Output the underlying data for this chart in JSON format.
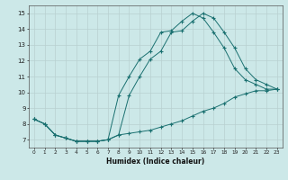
{
  "xlabel": "Humidex (Indice chaleur)",
  "background_color": "#cce8e8",
  "grid_color": "#b8d0d0",
  "line_color": "#1a7070",
  "xlim": [
    -0.5,
    23.5
  ],
  "ylim": [
    6.5,
    15.5
  ],
  "xticks": [
    0,
    1,
    2,
    3,
    4,
    5,
    6,
    7,
    8,
    9,
    10,
    11,
    12,
    13,
    14,
    15,
    16,
    17,
    18,
    19,
    20,
    21,
    22,
    23
  ],
  "yticks": [
    7,
    8,
    9,
    10,
    11,
    12,
    13,
    14,
    15
  ],
  "line1_x": [
    0,
    1,
    2,
    3,
    4,
    5,
    6,
    7,
    8,
    9,
    10,
    11,
    12,
    13,
    14,
    15,
    16,
    17,
    18,
    19,
    20,
    21,
    22,
    23
  ],
  "line1_y": [
    8.3,
    8.0,
    7.3,
    7.1,
    6.9,
    6.9,
    6.9,
    7.0,
    7.3,
    9.8,
    11.0,
    12.1,
    12.6,
    13.8,
    13.9,
    14.5,
    15.0,
    14.7,
    13.8,
    12.8,
    11.5,
    10.8,
    10.5,
    10.2
  ],
  "line2_x": [
    0,
    1,
    2,
    3,
    4,
    5,
    6,
    7,
    8,
    9,
    10,
    11,
    12,
    13,
    14,
    15,
    16,
    17,
    18,
    19,
    20,
    21,
    22,
    23
  ],
  "line2_y": [
    8.3,
    8.0,
    7.3,
    7.1,
    6.9,
    6.9,
    6.9,
    7.0,
    7.3,
    7.4,
    7.5,
    7.6,
    7.8,
    8.0,
    8.2,
    8.5,
    8.8,
    9.0,
    9.3,
    9.7,
    9.9,
    10.1,
    10.1,
    10.2
  ],
  "line3_x": [
    0,
    1,
    2,
    3,
    4,
    5,
    6,
    7,
    8,
    9,
    10,
    11,
    12,
    13,
    14,
    15,
    16,
    17,
    18,
    19,
    20,
    21,
    22,
    23
  ],
  "line3_y": [
    8.3,
    8.0,
    7.3,
    7.1,
    6.9,
    6.9,
    6.9,
    7.0,
    9.8,
    11.0,
    12.1,
    12.6,
    13.8,
    13.9,
    14.5,
    15.0,
    14.7,
    13.8,
    12.8,
    11.5,
    10.8,
    10.5,
    10.2,
    10.2
  ]
}
